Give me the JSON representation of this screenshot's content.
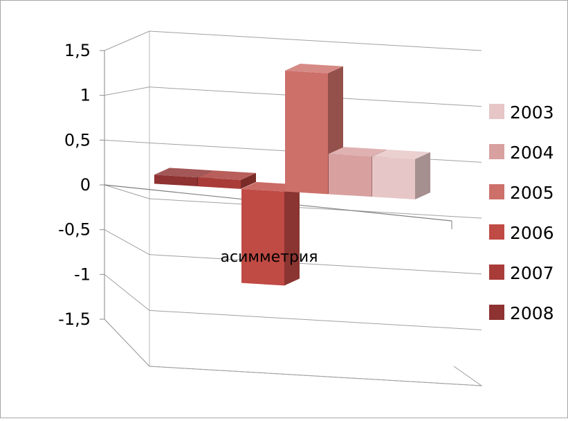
{
  "chart_data": {
    "type": "bar",
    "title": "",
    "xlabel": "",
    "ylabel": "",
    "ylim": [
      -1.5,
      1.5
    ],
    "y_ticks": [
      "1,5",
      "1",
      "0,5",
      "0",
      "-0,5",
      "-1",
      "-1,5"
    ],
    "y_tick_values": [
      1.5,
      1,
      0.5,
      0,
      -0.5,
      -1,
      -1.5
    ],
    "categories": [
      "асимметрия"
    ],
    "series": [
      {
        "name": "2008",
        "values": [
          0.1
        ],
        "color": "#8f3232"
      },
      {
        "name": "2007",
        "values": [
          0.1
        ],
        "color": "#a93c38"
      },
      {
        "name": "2006",
        "values": [
          -1.05
        ],
        "color": "#c04a44"
      },
      {
        "name": "2005",
        "values": [
          1.35
        ],
        "color": "#cd706a"
      },
      {
        "name": "2004",
        "values": [
          0.45
        ],
        "color": "#d9a0a0"
      },
      {
        "name": "2003",
        "values": [
          0.45
        ],
        "color": "#e6c6c6"
      }
    ],
    "grid": true,
    "legend_position": "right",
    "style": "3d-clustered-columns"
  }
}
